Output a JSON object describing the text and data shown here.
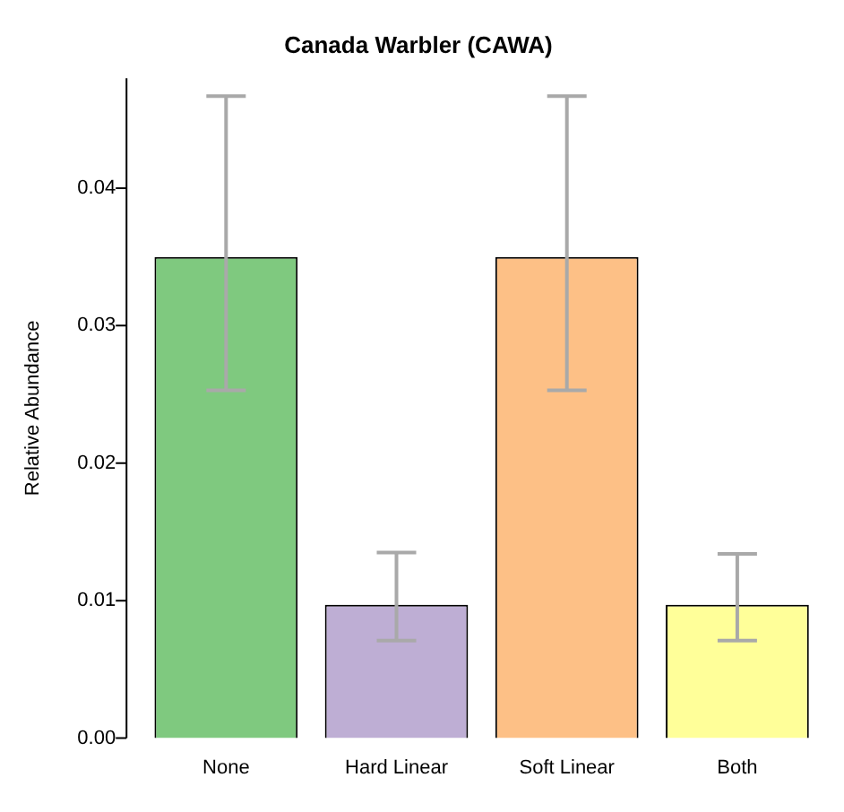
{
  "chart_data": {
    "type": "bar",
    "title": "Canada Warbler (CAWA)",
    "ylabel": "Relative Abundance",
    "categories": [
      "None",
      "Hard Linear",
      "Soft Linear",
      "Both"
    ],
    "values": [
      0.035,
      0.0097,
      0.035,
      0.0097
    ],
    "colors": [
      "#7fc97f",
      "#beaed4",
      "#fdc086",
      "#ffff99"
    ],
    "errors": [
      [
        0.0253,
        0.0467
      ],
      [
        0.0071,
        0.0135
      ],
      [
        0.0253,
        0.0467
      ],
      [
        0.0071,
        0.0134
      ]
    ],
    "ylim": [
      0,
      0.048
    ],
    "yticks": [
      {
        "value": 0,
        "label": "0.00"
      },
      {
        "value": 0.01,
        "label": "0.01"
      },
      {
        "value": 0.02,
        "label": "0.02"
      },
      {
        "value": 0.03,
        "label": "0.03"
      },
      {
        "value": 0.04,
        "label": "0.04"
      }
    ],
    "grid": false,
    "legend": false
  }
}
